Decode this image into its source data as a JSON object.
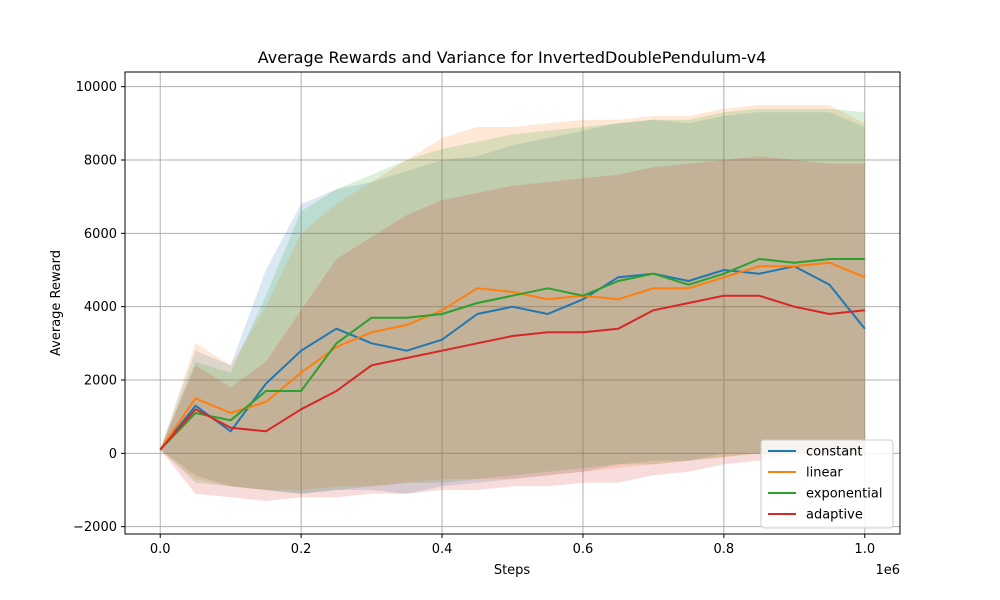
{
  "chart_data": {
    "type": "line",
    "title": "Average Rewards and Variance for InvertedDoublePendulum-v4",
    "xlabel": "Steps",
    "ylabel": "Average Reward",
    "x_offset_text": "1e6",
    "xlim": [
      -0.05,
      1.05
    ],
    "ylim": [
      -2200,
      10400
    ],
    "x_ticks": [
      0.0,
      0.2,
      0.4,
      0.6,
      0.8,
      1.0
    ],
    "x_tick_labels": [
      "0.0",
      "0.2",
      "0.4",
      "0.6",
      "0.8",
      "1.0"
    ],
    "y_ticks": [
      -2000,
      0,
      2000,
      4000,
      6000,
      8000,
      10000
    ],
    "y_tick_labels": [
      "−2000",
      "0",
      "2000",
      "4000",
      "6000",
      "8000",
      "10000"
    ],
    "grid": true,
    "legend_position": "lower-right",
    "x": [
      0.0,
      0.05,
      0.1,
      0.15,
      0.2,
      0.25,
      0.3,
      0.35,
      0.4,
      0.45,
      0.5,
      0.55,
      0.6,
      0.65,
      0.7,
      0.75,
      0.8,
      0.85,
      0.9,
      0.95,
      1.0
    ],
    "series": [
      {
        "name": "constant",
        "color": "#1f77b4",
        "values": [
          100,
          1300,
          600,
          1900,
          2800,
          3400,
          3000,
          2800,
          3100,
          3800,
          4000,
          3800,
          4200,
          4800,
          4900,
          4700,
          5000,
          4900,
          5100,
          4600,
          3400
        ],
        "upper": [
          100,
          2800,
          2400,
          5000,
          6800,
          7200,
          7400,
          7700,
          8000,
          8100,
          8400,
          8600,
          8800,
          9000,
          9100,
          9000,
          9200,
          9300,
          9300,
          9300,
          8900
        ],
        "lower": [
          100,
          -600,
          -900,
          -1000,
          -1100,
          -1000,
          -1000,
          -1100,
          -900,
          -800,
          -700,
          -600,
          -500,
          -300,
          -200,
          -200,
          0,
          0,
          0,
          0,
          0
        ]
      },
      {
        "name": "linear",
        "color": "#ff7f0e",
        "values": [
          100,
          1500,
          1100,
          1400,
          2200,
          2900,
          3300,
          3500,
          3900,
          4500,
          4400,
          4200,
          4300,
          4200,
          4500,
          4500,
          4800,
          5100,
          5100,
          5200,
          4800
        ],
        "upper": [
          100,
          3000,
          2400,
          4000,
          6000,
          6800,
          7400,
          8000,
          8600,
          8900,
          8900,
          9000,
          9100,
          9100,
          9200,
          9200,
          9400,
          9500,
          9500,
          9500,
          9000
        ],
        "lower": [
          100,
          -700,
          -900,
          -1000,
          -1000,
          -900,
          -900,
          -800,
          -700,
          -700,
          -700,
          -600,
          -500,
          -400,
          -300,
          -200,
          -100,
          0,
          0,
          0,
          0
        ]
      },
      {
        "name": "exponential",
        "color": "#2ca02c",
        "values": [
          100,
          1100,
          900,
          1700,
          1700,
          3000,
          3700,
          3700,
          3800,
          4100,
          4300,
          4500,
          4300,
          4700,
          4900,
          4600,
          4900,
          5300,
          5200,
          5300,
          5300
        ],
        "upper": [
          100,
          2500,
          2200,
          4300,
          6600,
          7200,
          7600,
          8000,
          8300,
          8500,
          8700,
          8800,
          8900,
          9000,
          9100,
          9100,
          9300,
          9400,
          9400,
          9400,
          9300
        ],
        "lower": [
          100,
          -800,
          -900,
          -1000,
          -1100,
          -1000,
          -900,
          -800,
          -800,
          -700,
          -600,
          -500,
          -400,
          -300,
          -300,
          -200,
          -100,
          0,
          0,
          0,
          0
        ]
      },
      {
        "name": "adaptive",
        "color": "#d62728",
        "values": [
          100,
          1200,
          700,
          600,
          1200,
          1700,
          2400,
          2600,
          2800,
          3000,
          3200,
          3300,
          3300,
          3400,
          3900,
          4100,
          4300,
          4300,
          4000,
          3800,
          3900
        ],
        "upper": [
          100,
          2400,
          1800,
          2500,
          3900,
          5300,
          5900,
          6500,
          6900,
          7100,
          7300,
          7400,
          7500,
          7600,
          7800,
          7900,
          8000,
          8100,
          8000,
          7900,
          7900
        ],
        "lower": [
          100,
          -1100,
          -1200,
          -1300,
          -1200,
          -1200,
          -1100,
          -1100,
          -1000,
          -1000,
          -900,
          -900,
          -800,
          -800,
          -600,
          -500,
          -300,
          -200,
          0,
          0,
          100
        ]
      }
    ]
  }
}
